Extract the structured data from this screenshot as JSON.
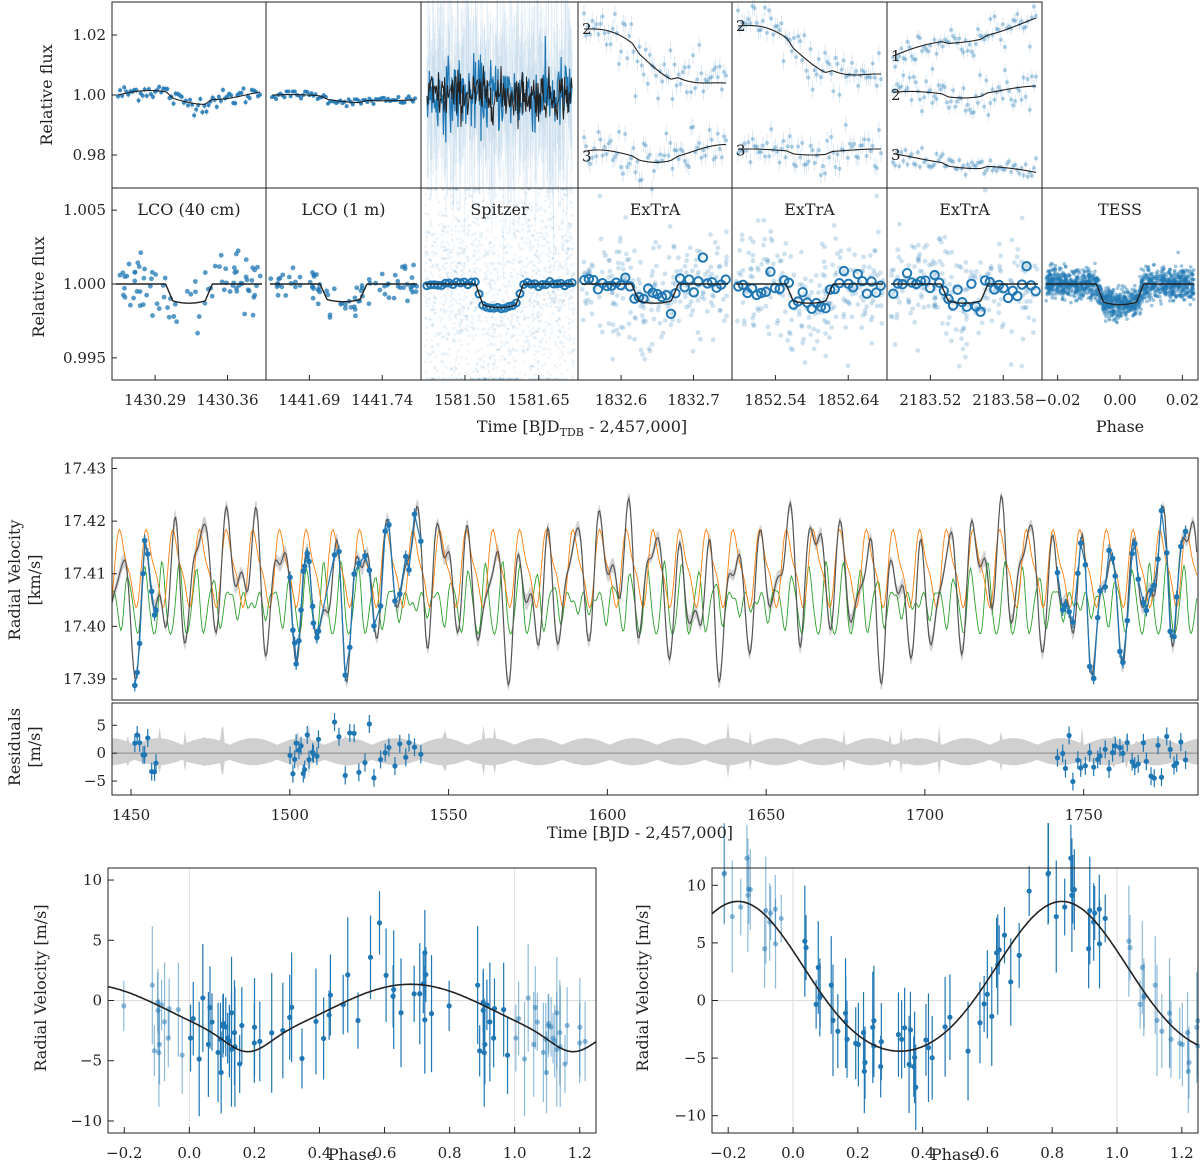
{
  "colors": {
    "data": "#1f77b4",
    "model": "#222222",
    "orange": "#ff7f0e",
    "green": "#2ca02c",
    "gp": "#555555",
    "band": "#c8c8c8"
  },
  "chart_data": [
    {
      "type": "scatter",
      "name_hint": "transit light curves (raw and detrended)",
      "ylabel_top": "Relative flux",
      "ylabel_bottom": "Relative flux",
      "xlabel_time_main": "Time [BJD",
      "xlabel_time_sub": "TDB",
      "xlabel_time_tail": " - 2,457,000]",
      "xlabel_phase": "Phase",
      "top_ylim": [
        0.969,
        1.031
      ],
      "top_yticks": [
        "1.02",
        "1.00",
        "0.98"
      ],
      "bottom_ylim": [
        0.9935,
        1.0065
      ],
      "bottom_yticks": [
        "1.005",
        "1.000",
        "0.995"
      ],
      "panels": [
        {
          "title": "LCO (40 cm)",
          "xticks": [
            "1430.29",
            "1430.36"
          ],
          "transit_depth": 0.0013
        },
        {
          "title": "LCO (1 m)",
          "xticks": [
            "1441.69",
            "1441.74"
          ],
          "transit_depth": 0.0012
        },
        {
          "title": "Spitzer",
          "xticks": [
            "1581.50",
            "1581.65"
          ],
          "transit_depth": 0.0016
        },
        {
          "title": "ExTrA",
          "xticks": [
            "1832.6",
            "1832.7"
          ],
          "transit_depth": 0.0013,
          "offset_labels": [
            "2",
            "3"
          ]
        },
        {
          "title": "ExTrA",
          "xticks": [
            "1852.54",
            "1852.64"
          ],
          "transit_depth": 0.0013,
          "offset_labels": [
            "2",
            "3"
          ]
        },
        {
          "title": "ExTrA",
          "xticks": [
            "2183.52",
            "2183.58"
          ],
          "transit_depth": 0.0013,
          "offset_labels": [
            "1",
            "2",
            "3"
          ]
        },
        {
          "title": "TESS",
          "xticks": [
            "−0.02",
            "0.00",
            "0.02"
          ],
          "transit_depth": 0.0014
        }
      ]
    },
    {
      "type": "line",
      "name_hint": "radial velocity time series",
      "ylabel_line1": "Radial Velocity",
      "ylabel_line2": "[km/s]",
      "ylim": [
        17.386,
        17.432
      ],
      "yticks": [
        "17.43",
        "17.42",
        "17.41",
        "17.40",
        "17.39"
      ],
      "xlim": [
        1444,
        1786
      ],
      "xticks": [
        "1450",
        "1500",
        "1550",
        "1600",
        "1650",
        "1700",
        "1750"
      ],
      "xlabel": "Time [BJD - 2,457,000]",
      "series": [
        {
          "role": "gp-model",
          "color": "#555555"
        },
        {
          "role": "planet-orange",
          "color": "#ff7f0e"
        },
        {
          "role": "planet-green",
          "color": "#2ca02c"
        },
        {
          "role": "observations",
          "color": "#1f77b4"
        }
      ],
      "observation_groups": [
        {
          "range": [
            1451,
            1458
          ],
          "n": 9
        },
        {
          "range": [
            1500,
            1509
          ],
          "n": 14
        },
        {
          "range": [
            1514,
            1541
          ],
          "n": 18
        },
        {
          "range": [
            1742,
            1782
          ],
          "n": 34
        }
      ],
      "residuals": {
        "ylabel_line1": "Residuals",
        "ylabel_line2": "[m/s]",
        "ylim": [
          -7.5,
          9
        ],
        "yticks": [
          "5",
          "0",
          "−5"
        ]
      }
    },
    {
      "type": "scatter",
      "name_hint": "phase-folded RV planet b",
      "xlabel": "Phase",
      "ylabel": "Radial Velocity [m/s]",
      "xlim": [
        -0.25,
        1.25
      ],
      "ylim": [
        -11,
        11
      ],
      "xticks": [
        "−0.2",
        "0.0",
        "0.2",
        "0.4",
        "0.6",
        "0.8",
        "1.0",
        "1.2"
      ],
      "yticks": [
        "10",
        "5",
        "0",
        "−5",
        "−10"
      ],
      "model_shape": "min -3.0 at phase 0.18, max 1.5 at 0.62, eccentric",
      "n_points": 62
    },
    {
      "type": "scatter",
      "name_hint": "phase-folded RV planet c",
      "xlabel": "Phase",
      "ylabel": "Radial Velocity [m/s]",
      "xlim": [
        -0.25,
        1.25
      ],
      "ylim": [
        -11.5,
        11.5
      ],
      "xticks": [
        "−0.2",
        "0.0",
        "0.2",
        "0.4",
        "0.6",
        "0.8",
        "1.0",
        "1.2"
      ],
      "yticks": [
        "10",
        "5",
        "0",
        "−5",
        "−10"
      ],
      "model_shape": "max 8 at phase 0.83, min -5 at 0.35",
      "n_points": 62
    }
  ]
}
